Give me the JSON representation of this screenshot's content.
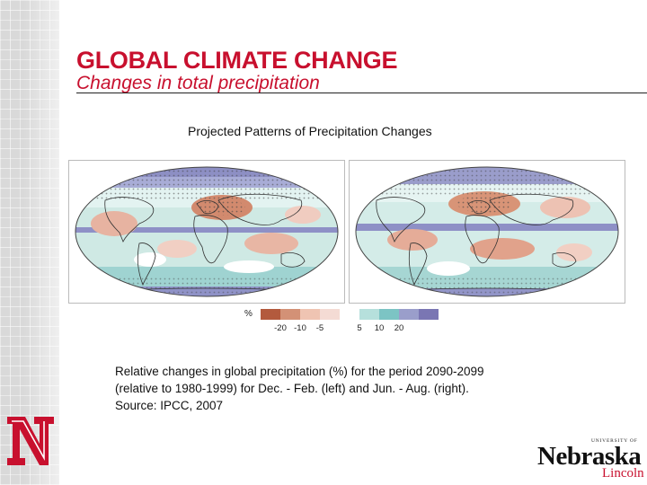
{
  "slide": {
    "title": "GLOBAL CLIMATE CHANGE",
    "subtitle": "Changes in total precipitation",
    "accent_color": "#c8102e"
  },
  "figure": {
    "title": "Projected Patterns of Precipitation Changes",
    "maps": [
      {
        "name": "Dec-Feb precipitation change map"
      },
      {
        "name": "Jun-Aug precipitation change map"
      }
    ],
    "legend": {
      "unit": "%",
      "labels": [
        "-20",
        "-10",
        "-5",
        "5",
        "10",
        "20"
      ],
      "colors": [
        "#b35a3d",
        "#d39176",
        "#efc4b2",
        "#f4dbd4",
        "#ffffff",
        "#b6e0dc",
        "#7cc4c4",
        "#9a9ecb",
        "#7a76b3"
      ]
    }
  },
  "caption": {
    "line1": "Relative changes in global precipitation (%) for the period 2090-2099",
    "line2": "(relative to 1980-1999) for Dec. - Feb. (left) and Jun. - Aug. (right).",
    "line3": "Source: IPCC, 2007"
  },
  "logos": {
    "university_small": "UNIVERSITY OF",
    "university_name": "Nebraska",
    "university_city": "Lincoln"
  }
}
